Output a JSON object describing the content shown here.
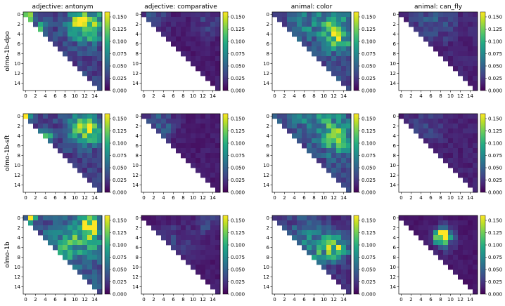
{
  "chart_data": {
    "type": "heatmap",
    "grid_size": 16,
    "colormap": "viridis",
    "colorbar": {
      "min": 0.0,
      "max": 0.16,
      "tick_values": [
        0.0,
        0.025,
        0.05,
        0.075,
        0.1,
        0.125,
        0.15
      ],
      "tick_labels": [
        "0.000",
        "0.025",
        "0.050",
        "0.075",
        "0.100",
        "0.125",
        "0.150"
      ]
    },
    "axis_ticks": [
      0,
      2,
      4,
      6,
      8,
      10,
      12,
      14
    ],
    "axis_tick_labels": [
      "0",
      "2",
      "4",
      "6",
      "8",
      "10",
      "12",
      "14"
    ],
    "columns": [
      {
        "title": "adjective: antonym"
      },
      {
        "title": "adjective: comparative"
      },
      {
        "title": "animal: color"
      },
      {
        "title": "animal: can_fly"
      }
    ],
    "rows": [
      {
        "label": "olmo-1b-dpo",
        "panels": [
          {
            "base": 0.03,
            "blobs": [
              [
                0,
                0,
                0.12,
                0.6
              ],
              [
                1,
                1,
                0.09,
                0.7
              ],
              [
                3,
                3,
                0.1,
                0.8
              ],
              [
                2,
                13,
                0.08,
                2.5
              ],
              [
                2,
                11,
                0.05,
                2.0
              ]
            ]
          },
          {
            "base": 0.012,
            "blobs": [
              [
                1,
                2,
                0.03,
                2.0
              ],
              [
                2,
                13,
                0.02,
                2.0
              ]
            ]
          },
          {
            "base": 0.035,
            "blobs": [
              [
                3,
                12,
                0.06,
                2.5
              ],
              [
                5,
                13,
                0.05,
                2.0
              ],
              [
                1,
                6,
                0.03,
                2.5
              ]
            ]
          },
          {
            "base": 0.015,
            "blobs": [
              [
                1,
                5,
                0.02,
                2.5
              ],
              [
                2,
                9,
                0.015,
                2.5
              ]
            ]
          }
        ]
      },
      {
        "label": "olmo-1b-sft",
        "panels": [
          {
            "base": 0.03,
            "blobs": [
              [
                0,
                0,
                0.13,
                0.6
              ],
              [
                3,
                13,
                0.07,
                2.0
              ],
              [
                4,
                4,
                0.1,
                0.8
              ],
              [
                2,
                11,
                0.04,
                2.0
              ]
            ]
          },
          {
            "base": 0.012,
            "blobs": [
              [
                1,
                3,
                0.03,
                2.0
              ],
              [
                3,
                4,
                0.02,
                1.5
              ]
            ]
          },
          {
            "base": 0.035,
            "blobs": [
              [
                3,
                12,
                0.06,
                2.5
              ],
              [
                5,
                13,
                0.04,
                2.0
              ],
              [
                1,
                7,
                0.03,
                2.5
              ]
            ]
          },
          {
            "base": 0.015,
            "blobs": [
              [
                2,
                5,
                0.015,
                2.5
              ]
            ]
          }
        ]
      },
      {
        "label": "olmo-1b",
        "panels": [
          {
            "base": 0.04,
            "blobs": [
              [
                0,
                1,
                0.12,
                0.6
              ],
              [
                1,
                13,
                0.1,
                1.5
              ],
              [
                6,
                8,
                0.05,
                2.5
              ],
              [
                4,
                13,
                0.05,
                2.5
              ]
            ]
          },
          {
            "base": 0.012,
            "blobs": [
              [
                1,
                13,
                0.03,
                1.5
              ],
              [
                5,
                6,
                0.02,
                2.5
              ]
            ]
          },
          {
            "base": 0.02,
            "blobs": [
              [
                6,
                9,
                0.07,
                2.5
              ],
              [
                6,
                13,
                0.09,
                1.5
              ],
              [
                2,
                5,
                0.02,
                2.5
              ]
            ]
          },
          {
            "base": 0.01,
            "blobs": [
              [
                4,
                8,
                0.14,
                0.9
              ],
              [
                3,
                9,
                0.05,
                1.2
              ],
              [
                5,
                9,
                0.03,
                1.5
              ]
            ]
          }
        ]
      }
    ]
  }
}
